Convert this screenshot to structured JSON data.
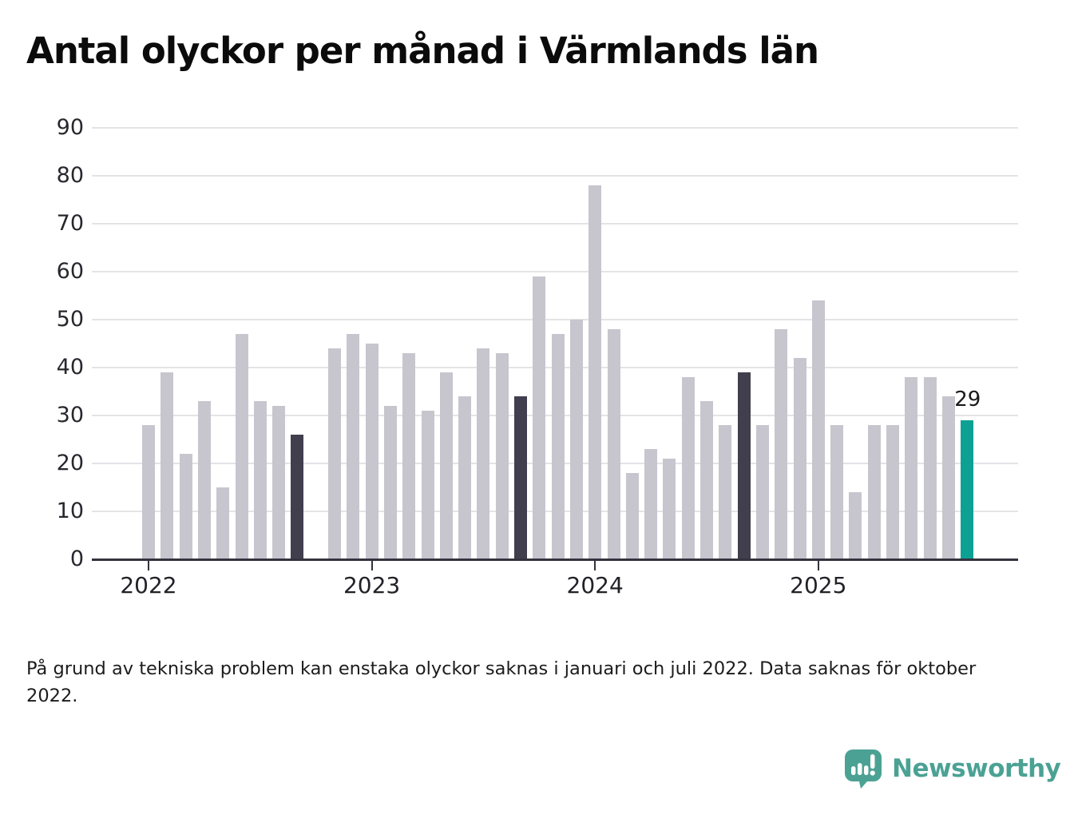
{
  "title": "Antal olyckor per månad i Värmlands län",
  "footnote": "På grund av tekniska problem kan enstaka olyckor saknas i januari och juli 2022. Data saknas för oktober 2022.",
  "branding": {
    "name": "Newsworthy",
    "color": "#4ba294",
    "icon": "bar-chart-speech-bubble-icon"
  },
  "colors": {
    "bar_normal": "#c7c6ce",
    "bar_highlight_dark": "#413f4e",
    "bar_highlight_current": "#0da195",
    "gridline": "#e4e4e7",
    "axis": "#34323d",
    "text": "#28272e"
  },
  "chart_data": {
    "type": "bar",
    "title": "Antal olyckor per månad i Värmlands län",
    "xlabel": "",
    "ylabel": "",
    "ylim": [
      0,
      90
    ],
    "y_ticks": [
      0,
      10,
      20,
      30,
      40,
      50,
      60,
      70,
      80,
      90
    ],
    "grid": "horizontal",
    "legend": "none",
    "x_tick_labels": [
      "2022",
      "2023",
      "2024",
      "2025"
    ],
    "x_ticks": [
      {
        "label": "2022",
        "month_index": 0
      },
      {
        "label": "2023",
        "month_index": 12
      },
      {
        "label": "2024",
        "month_index": 24
      },
      {
        "label": "2025",
        "month_index": 36
      }
    ],
    "annotation": {
      "text": "29",
      "month_index": 44
    },
    "months": [
      {
        "month": "2022-01",
        "value": 28,
        "role": "normal"
      },
      {
        "month": "2022-02",
        "value": 39,
        "role": "normal"
      },
      {
        "month": "2022-03",
        "value": 22,
        "role": "normal"
      },
      {
        "month": "2022-04",
        "value": 33,
        "role": "normal"
      },
      {
        "month": "2022-05",
        "value": 15,
        "role": "normal"
      },
      {
        "month": "2022-06",
        "value": 47,
        "role": "normal"
      },
      {
        "month": "2022-07",
        "value": 33,
        "role": "normal"
      },
      {
        "month": "2022-08",
        "value": 32,
        "role": "normal"
      },
      {
        "month": "2022-09",
        "value": 26,
        "role": "highlight_dark"
      },
      {
        "month": "2022-10",
        "value": null,
        "role": "missing"
      },
      {
        "month": "2022-11",
        "value": 44,
        "role": "normal"
      },
      {
        "month": "2022-12",
        "value": 47,
        "role": "normal"
      },
      {
        "month": "2023-01",
        "value": 45,
        "role": "normal"
      },
      {
        "month": "2023-02",
        "value": 32,
        "role": "normal"
      },
      {
        "month": "2023-03",
        "value": 43,
        "role": "normal"
      },
      {
        "month": "2023-04",
        "value": 31,
        "role": "normal"
      },
      {
        "month": "2023-05",
        "value": 39,
        "role": "normal"
      },
      {
        "month": "2023-06",
        "value": 34,
        "role": "normal"
      },
      {
        "month": "2023-07",
        "value": 44,
        "role": "normal"
      },
      {
        "month": "2023-08",
        "value": 43,
        "role": "normal"
      },
      {
        "month": "2023-09",
        "value": 34,
        "role": "highlight_dark"
      },
      {
        "month": "2023-10",
        "value": 59,
        "role": "normal"
      },
      {
        "month": "2023-11",
        "value": 47,
        "role": "normal"
      },
      {
        "month": "2023-12",
        "value": 50,
        "role": "normal"
      },
      {
        "month": "2024-01",
        "value": 78,
        "role": "normal"
      },
      {
        "month": "2024-02",
        "value": 48,
        "role": "normal"
      },
      {
        "month": "2024-03",
        "value": 18,
        "role": "normal"
      },
      {
        "month": "2024-04",
        "value": 23,
        "role": "normal"
      },
      {
        "month": "2024-05",
        "value": 21,
        "role": "normal"
      },
      {
        "month": "2024-06",
        "value": 38,
        "role": "normal"
      },
      {
        "month": "2024-07",
        "value": 33,
        "role": "normal"
      },
      {
        "month": "2024-08",
        "value": 28,
        "role": "normal"
      },
      {
        "month": "2024-09",
        "value": 39,
        "role": "highlight_dark"
      },
      {
        "month": "2024-10",
        "value": 28,
        "role": "normal"
      },
      {
        "month": "2024-11",
        "value": 48,
        "role": "normal"
      },
      {
        "month": "2024-12",
        "value": 42,
        "role": "normal"
      },
      {
        "month": "2025-01",
        "value": 54,
        "role": "normal"
      },
      {
        "month": "2025-02",
        "value": 28,
        "role": "normal"
      },
      {
        "month": "2025-03",
        "value": 14,
        "role": "normal"
      },
      {
        "month": "2025-04",
        "value": 28,
        "role": "normal"
      },
      {
        "month": "2025-05",
        "value": 28,
        "role": "normal"
      },
      {
        "month": "2025-06",
        "value": 38,
        "role": "normal"
      },
      {
        "month": "2025-07",
        "value": 38,
        "role": "normal"
      },
      {
        "month": "2025-08",
        "value": 34,
        "role": "normal"
      },
      {
        "month": "2025-09",
        "value": 29,
        "role": "highlight_current"
      }
    ]
  }
}
